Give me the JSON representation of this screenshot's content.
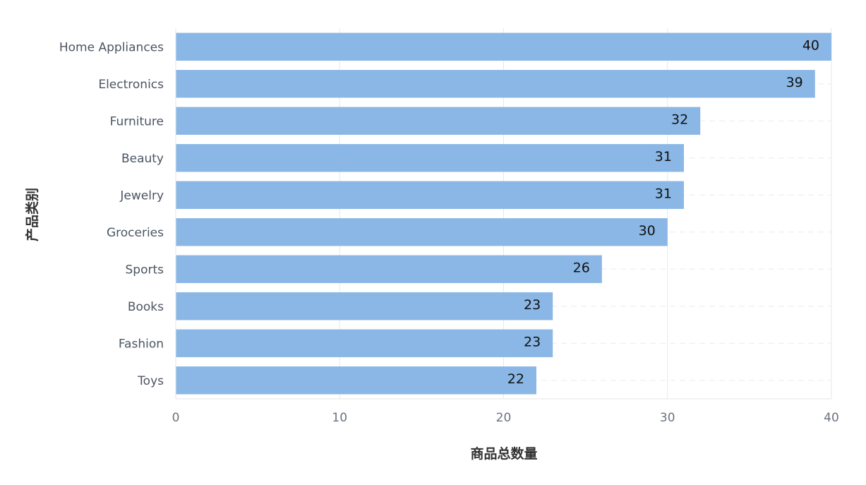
{
  "chart_data": {
    "type": "bar",
    "orientation": "horizontal",
    "categories": [
      "Home Appliances",
      "Electronics",
      "Furniture",
      "Beauty",
      "Jewelry",
      "Groceries",
      "Sports",
      "Books",
      "Fashion",
      "Toys"
    ],
    "series": [
      {
        "values": [
          40,
          39,
          32,
          31,
          31,
          30,
          26,
          23,
          23,
          22
        ]
      }
    ],
    "xlabel": "商品总数量",
    "ylabel": "产品类别",
    "xlim": [
      0,
      40
    ],
    "xticks": [
      0,
      10,
      20,
      30,
      40
    ],
    "grid": true,
    "bar_color": "#8ab7e5",
    "show_data_labels": true
  }
}
